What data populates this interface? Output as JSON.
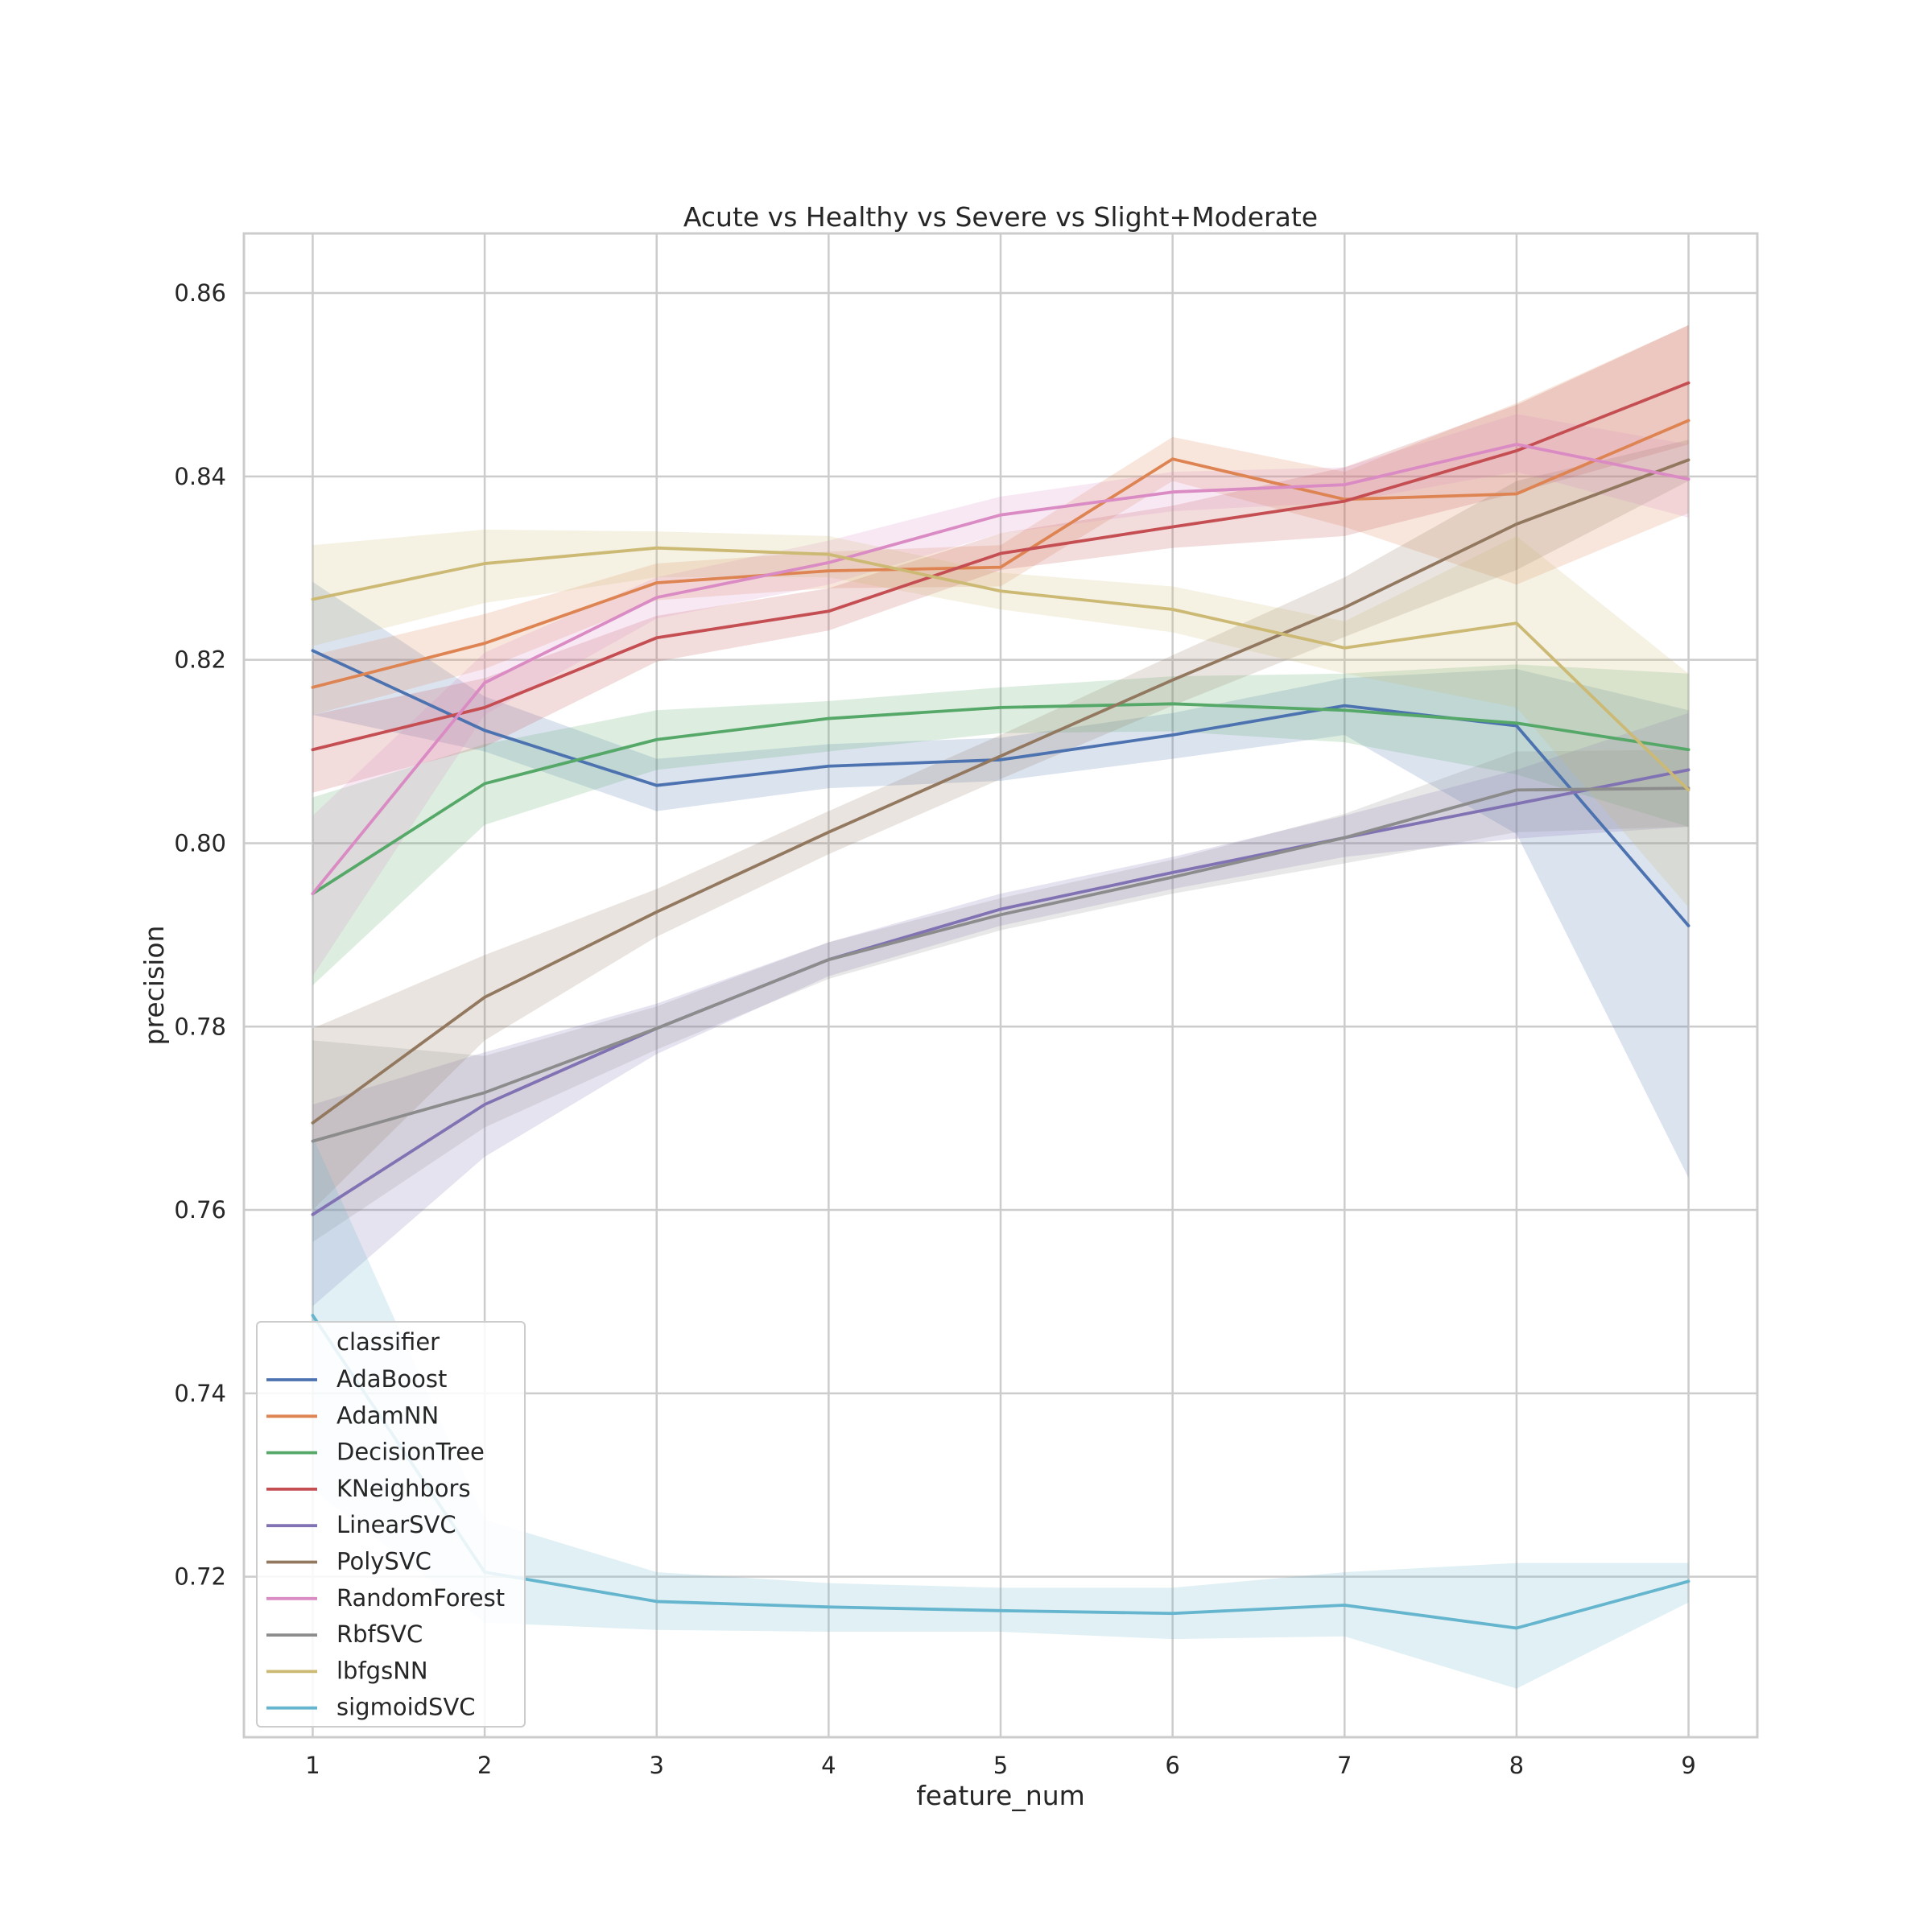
{
  "chart_data": {
    "type": "line",
    "title": "Acute vs Healthy vs Severe vs Slight+Moderate",
    "xlabel": "feature_num",
    "ylabel": "precision",
    "xlim": [
      0.6,
      9.4
    ],
    "ylim": [
      0.7025,
      0.8665
    ],
    "x": [
      1,
      2,
      3,
      4,
      5,
      6,
      7,
      8,
      9
    ],
    "x_ticks": [
      "1",
      "2",
      "3",
      "4",
      "5",
      "6",
      "7",
      "8",
      "9"
    ],
    "y_ticks": [
      0.72,
      0.74,
      0.76,
      0.78,
      0.8,
      0.82,
      0.84,
      0.86
    ],
    "y_tick_labels": [
      "0.72",
      "0.74",
      "0.76",
      "0.78",
      "0.80",
      "0.82",
      "0.84",
      "0.86"
    ],
    "grid": true,
    "legend": {
      "title": "classifier",
      "placement": "lower-left"
    },
    "series": [
      {
        "name": "AdaBoost",
        "color": "#4c72b0",
        "values": [
          0.821,
          0.8123,
          0.8063,
          0.8084,
          0.8091,
          0.8118,
          0.815,
          0.8128,
          0.791
        ],
        "lower": [
          0.814,
          0.81,
          0.8035,
          0.806,
          0.8068,
          0.8092,
          0.8118,
          0.801,
          0.7635
        ],
        "upper": [
          0.8285,
          0.816,
          0.8092,
          0.8108,
          0.8115,
          0.8142,
          0.818,
          0.819,
          0.8145
        ]
      },
      {
        "name": "AdamNN",
        "color": "#dd8452",
        "values": [
          0.817,
          0.8218,
          0.8284,
          0.8297,
          0.8301,
          0.8419,
          0.8375,
          0.8381,
          0.8461
        ],
        "lower": [
          0.814,
          0.819,
          0.8265,
          0.8278,
          0.828,
          0.8395,
          0.8345,
          0.8282,
          0.836
        ],
        "upper": [
          0.8205,
          0.825,
          0.8305,
          0.8318,
          0.8325,
          0.8443,
          0.8405,
          0.848,
          0.8565
        ]
      },
      {
        "name": "DecisionTree",
        "color": "#55a868",
        "values": [
          0.7945,
          0.8065,
          0.8113,
          0.8136,
          0.8148,
          0.8152,
          0.8145,
          0.8131,
          0.8102
        ],
        "lower": [
          0.7845,
          0.802,
          0.808,
          0.81,
          0.812,
          0.8122,
          0.811,
          0.8075,
          0.8018
        ],
        "upper": [
          0.805,
          0.8108,
          0.8145,
          0.8155,
          0.817,
          0.8182,
          0.8185,
          0.8195,
          0.8185
        ]
      },
      {
        "name": "KNeighbors",
        "color": "#c44e52",
        "values": [
          0.8102,
          0.8148,
          0.8224,
          0.8253,
          0.8316,
          0.8345,
          0.8373,
          0.8428,
          0.8502
        ],
        "lower": [
          0.8055,
          0.8105,
          0.8198,
          0.8232,
          0.8298,
          0.8322,
          0.8335,
          0.8382,
          0.8435
        ],
        "upper": [
          0.814,
          0.818,
          0.8248,
          0.8278,
          0.8338,
          0.8368,
          0.841,
          0.8478,
          0.8565
        ]
      },
      {
        "name": "LinearSVC",
        "color": "#8172b3",
        "values": [
          0.7595,
          0.7715,
          0.7798,
          0.7873,
          0.7928,
          0.7968,
          0.8006,
          0.8043,
          0.808
        ],
        "lower": [
          0.7495,
          0.7658,
          0.777,
          0.7855,
          0.791,
          0.795,
          0.7985,
          0.8005,
          0.8018
        ],
        "upper": [
          0.7715,
          0.7772,
          0.7825,
          0.7892,
          0.7945,
          0.7985,
          0.803,
          0.808,
          0.8142
        ]
      },
      {
        "name": "PolySVC",
        "color": "#937860",
        "values": [
          0.7695,
          0.7832,
          0.7925,
          0.8012,
          0.8095,
          0.8178,
          0.8257,
          0.8348,
          0.8418
        ],
        "lower": [
          0.76,
          0.7785,
          0.7898,
          0.7988,
          0.807,
          0.815,
          0.8225,
          0.8298,
          0.8395
        ],
        "upper": [
          0.7798,
          0.7878,
          0.795,
          0.8035,
          0.8118,
          0.8205,
          0.829,
          0.8395,
          0.844
        ]
      },
      {
        "name": "RandomForest",
        "color": "#da8bc3",
        "values": [
          0.7945,
          0.8175,
          0.8268,
          0.8306,
          0.8358,
          0.8383,
          0.8391,
          0.8435,
          0.8397
        ],
        "lower": [
          0.7855,
          0.814,
          0.8245,
          0.8282,
          0.8338,
          0.8362,
          0.8372,
          0.8405,
          0.8355
        ],
        "upper": [
          0.803,
          0.8208,
          0.829,
          0.833,
          0.8378,
          0.8405,
          0.841,
          0.8468,
          0.8435
        ]
      },
      {
        "name": "RbfSVC",
        "color": "#8c8c8c",
        "values": [
          0.7675,
          0.7728,
          0.7798,
          0.7873,
          0.7922,
          0.7963,
          0.8006,
          0.8058,
          0.806
        ],
        "lower": [
          0.7565,
          0.769,
          0.7775,
          0.7852,
          0.7905,
          0.7945,
          0.7978,
          0.8012,
          0.8018
        ],
        "upper": [
          0.7785,
          0.7768,
          0.7822,
          0.7892,
          0.794,
          0.7982,
          0.8032,
          0.81,
          0.8102
        ]
      },
      {
        "name": "lbfgsNN",
        "color": "#ccb974",
        "values": [
          0.8266,
          0.8305,
          0.8322,
          0.8315,
          0.8275,
          0.8255,
          0.8213,
          0.824,
          0.8058
        ],
        "lower": [
          0.8215,
          0.8262,
          0.829,
          0.829,
          0.8255,
          0.823,
          0.8185,
          0.8148,
          0.793
        ],
        "upper": [
          0.8325,
          0.8342,
          0.834,
          0.8335,
          0.8295,
          0.828,
          0.8242,
          0.8335,
          0.8185
        ]
      },
      {
        "name": "sigmoidSVC",
        "color": "#64b5cd",
        "values": [
          0.7485,
          0.7205,
          0.7173,
          0.7167,
          0.7163,
          0.716,
          0.7169,
          0.7144,
          0.7195
        ],
        "lower": [
          0.7295,
          0.715,
          0.7142,
          0.714,
          0.714,
          0.7132,
          0.7135,
          0.7078,
          0.7172
        ],
        "upper": [
          0.768,
          0.7262,
          0.7205,
          0.7193,
          0.7188,
          0.7188,
          0.7205,
          0.7215,
          0.7215
        ]
      }
    ]
  }
}
